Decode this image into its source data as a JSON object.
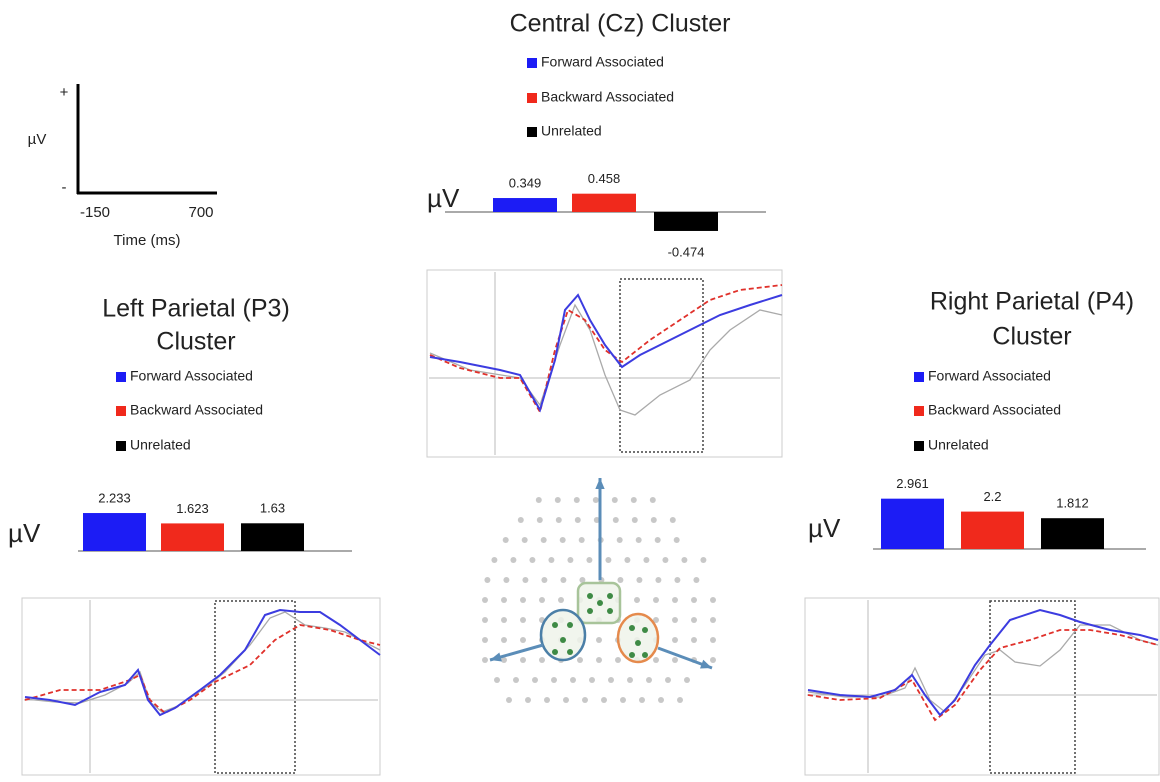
{
  "schematic": {
    "y_label": "µV",
    "plus": "+",
    "minus": "-",
    "x_start": -150,
    "x_end": 700,
    "x_label": "Time (ms)"
  },
  "chart_data": [
    {
      "type": "bar",
      "title": [
        "Central (Cz) Cluster"
      ],
      "y_label": "µV",
      "categories": [
        "Forward Associated",
        "Backward Associated",
        "Unrelated"
      ],
      "values": [
        0.349,
        0.458,
        -0.474
      ],
      "colors": [
        "#1c1cf5",
        "#f0291c",
        "#000000"
      ]
    },
    {
      "type": "bar",
      "title": [
        "Left Parietal (P3)",
        "Cluster"
      ],
      "y_label": "µV",
      "categories": [
        "Forward Associated",
        "Backward Associated",
        "Unrelated"
      ],
      "values": [
        2.233,
        1.623,
        1.63
      ],
      "colors": [
        "#1c1cf5",
        "#f0291c",
        "#000000"
      ]
    },
    {
      "type": "bar",
      "title": [
        "Right Parietal (P4)",
        "Cluster"
      ],
      "y_label": "µV",
      "categories": [
        "Forward Associated",
        "Backward Associated",
        "Unrelated"
      ],
      "values": [
        2.961,
        2.2,
        1.812
      ],
      "colors": [
        "#1c1cf5",
        "#f0291c",
        "#000000"
      ]
    }
  ]
}
